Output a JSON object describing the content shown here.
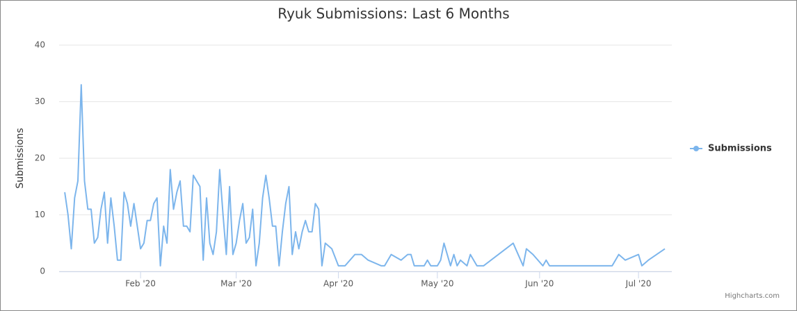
{
  "chart_data": {
    "type": "line",
    "title": "Ryuk Submissions: Last 6 Months",
    "y_label": "Submissions",
    "credits": "Highcharts.com",
    "x": [
      9,
      10,
      11,
      12,
      13,
      14,
      15,
      16,
      17,
      18,
      19,
      20,
      21,
      22,
      23,
      24,
      25,
      26,
      27,
      28,
      29,
      30,
      31,
      32,
      33,
      34,
      35,
      36,
      37,
      38,
      39,
      40,
      41,
      42,
      43,
      44,
      45,
      46,
      47,
      48,
      49,
      50,
      51,
      52,
      53,
      54,
      55,
      56,
      57,
      58,
      59,
      60,
      61,
      62,
      63,
      64,
      65,
      66,
      67,
      68,
      69,
      70,
      71,
      72,
      73,
      74,
      75,
      76,
      77,
      78,
      79,
      80,
      81,
      82,
      83,
      84,
      85,
      86,
      87,
      88,
      90,
      92,
      94,
      97,
      99,
      101,
      105,
      106,
      108,
      111,
      113,
      114,
      115,
      118,
      119,
      120,
      122,
      123,
      124,
      126,
      127,
      128,
      129,
      131,
      132,
      134,
      136,
      145,
      148,
      149,
      151,
      154,
      155,
      156,
      175,
      177,
      179,
      183,
      184,
      186,
      191
    ],
    "series": [
      {
        "name": "Submissions",
        "color": "#7cb5ec",
        "values": [
          14,
          10,
          4,
          13,
          16,
          33,
          16,
          11,
          11,
          5,
          6,
          11,
          14,
          5,
          13,
          8,
          2,
          2,
          14,
          12,
          8,
          12,
          8,
          4,
          5,
          9,
          9,
          12,
          13,
          1,
          8,
          5,
          18,
          11,
          14,
          16,
          8,
          8,
          7,
          17,
          16,
          15,
          2,
          13,
          5,
          3,
          7,
          18,
          10,
          3,
          15,
          3,
          5,
          9,
          12,
          5,
          6,
          11,
          1,
          5,
          13,
          17,
          13,
          8,
          8,
          1,
          7,
          12,
          15,
          3,
          7,
          4,
          7,
          9,
          7,
          7,
          12,
          11,
          1,
          5,
          4,
          1,
          1,
          3,
          3,
          2,
          1,
          1,
          3,
          2,
          3,
          3,
          1,
          1,
          2,
          1,
          1,
          2,
          5,
          1,
          3,
          1,
          2,
          1,
          3,
          1,
          1,
          5,
          1,
          4,
          3,
          1,
          2,
          1,
          1,
          3,
          2,
          3,
          1,
          2,
          4
        ]
      }
    ],
    "xlim": [
      7.3,
      193.1
    ],
    "xticks": [
      {
        "value": 32,
        "label": "Feb '20"
      },
      {
        "value": 61,
        "label": "Mar '20"
      },
      {
        "value": 92,
        "label": "Apr '20"
      },
      {
        "value": 122,
        "label": "May '20"
      },
      {
        "value": 153,
        "label": "Jun '20"
      },
      {
        "value": 183,
        "label": "Jul '20"
      }
    ],
    "ylim": [
      0,
      40
    ],
    "yticks": [
      0,
      10,
      20,
      30,
      40
    ],
    "grid": true,
    "legend": "right"
  }
}
